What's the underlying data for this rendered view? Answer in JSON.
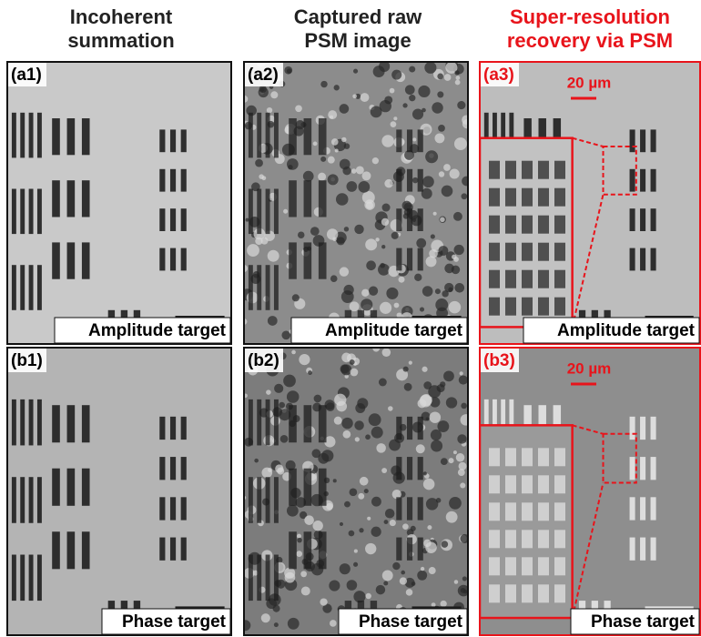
{
  "columns": [
    {
      "title": [
        "Incoherent",
        "summation"
      ]
    },
    {
      "title": [
        "Captured raw",
        "PSM image"
      ]
    },
    {
      "title": [
        "Super-resolution",
        "recovery via PSM"
      ]
    }
  ],
  "panels": [
    {
      "label": "(a1)",
      "caption": "Amplitude target"
    },
    {
      "label": "(a2)",
      "caption": "Amplitude target"
    },
    {
      "label": "(a3)",
      "caption": "Amplitude target",
      "scale_bar": "20 µm"
    },
    {
      "label": "(b1)",
      "caption": "Phase target"
    },
    {
      "label": "(b2)",
      "caption": "Phase target"
    },
    {
      "label": "(b3)",
      "caption": "Phase target",
      "scale_bar": "20 µm"
    }
  ]
}
